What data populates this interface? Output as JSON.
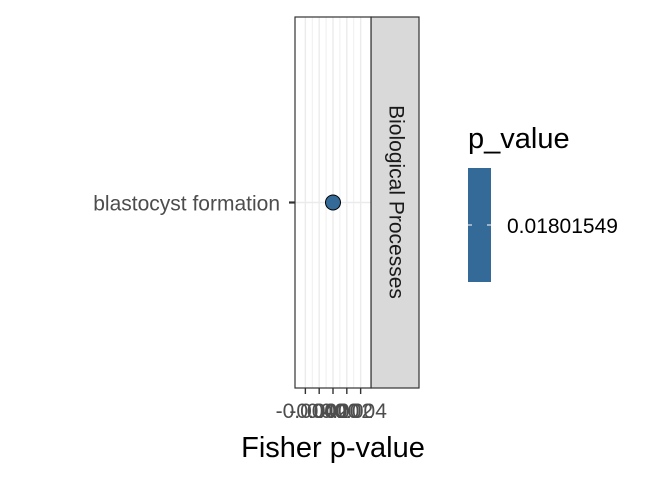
{
  "chart_data": {
    "type": "scatter",
    "x_axis_label": "Fisher p-value",
    "x_tick_labels": [
      "-0.004",
      "-0.002",
      "0.000",
      "0.002",
      "0.004"
    ],
    "x_ticks": [
      -0.004,
      -0.002,
      0.0,
      0.002,
      0.004
    ],
    "xlim": [
      -0.0055,
      0.0055
    ],
    "categories": [
      "blastocyst formation"
    ],
    "points": [
      {
        "category": "blastocyst formation",
        "x": 0.0,
        "p_value": 0.01801549
      }
    ],
    "facet_label": "Biological Processes",
    "legend": {
      "title": "p_value",
      "labels": [
        "0.01801549"
      ],
      "color": "#336a98",
      "position": "right"
    },
    "colors": {
      "point_fill": "#336a98",
      "strip_fill": "#d9d9d9",
      "grid": "#ebebeb",
      "panel_border": "#333333"
    }
  }
}
